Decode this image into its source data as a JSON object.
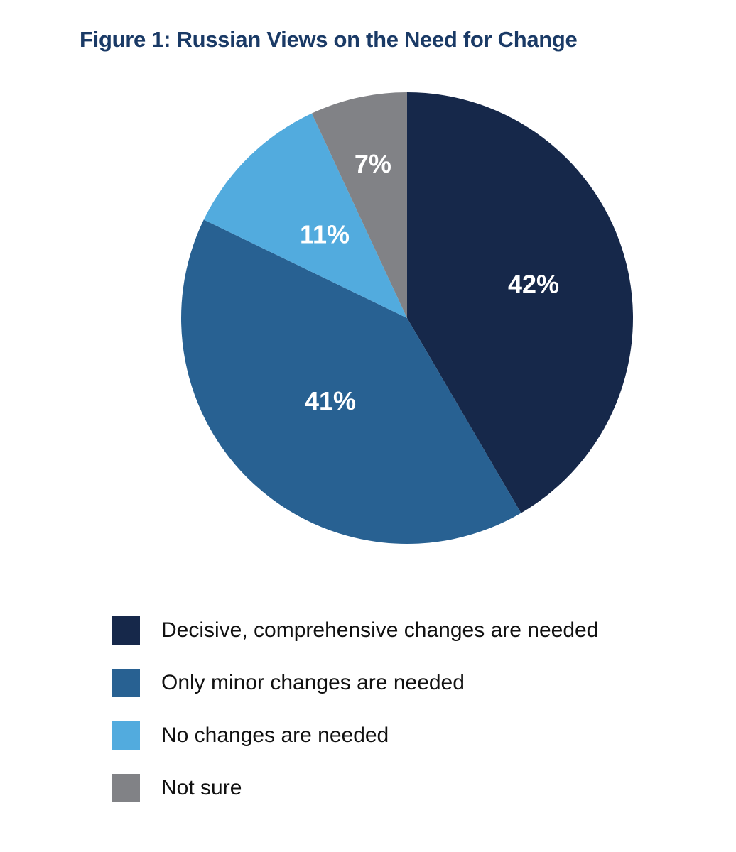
{
  "chart_data": {
    "type": "pie",
    "title": "Figure 1:  Russian Views on the Need for Change",
    "slices": [
      {
        "name": "Decisive, comprehensive changes are needed",
        "value": 42,
        "label": "42%",
        "color": "#16284a"
      },
      {
        "name": "Only minor changes are needed",
        "value": 41,
        "label": "41%",
        "color": "#286192"
      },
      {
        "name": "No changes are needed",
        "value": 11,
        "label": "11%",
        "color": "#52abde"
      },
      {
        "name": "Not sure",
        "value": 7,
        "label": "7%",
        "color": "#818286"
      }
    ],
    "legend_position": "bottom"
  }
}
